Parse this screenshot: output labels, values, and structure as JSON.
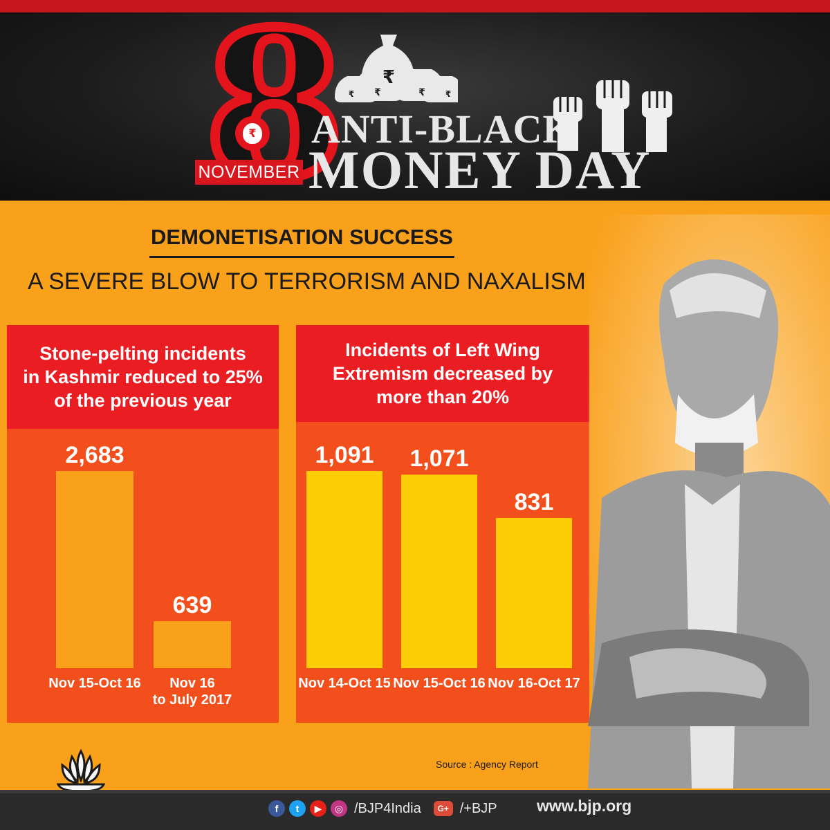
{
  "header": {
    "date_number": "8",
    "month": "NOVEMBER",
    "rupee_symbol": "₹",
    "title_line1": "ANTI-BLACK",
    "title_line2": "MONEY DAY"
  },
  "headline": {
    "line1_prefix": "DEMONETISATION",
    "line1_accent": "SUCCESS",
    "line2": "A SEVERE BLOW TO TERRORISM AND NAXALISM"
  },
  "colors": {
    "background": "#f9a11b",
    "header_red": "#e3141b",
    "panel_bg": "#f24f1c",
    "panel_header": "#ea1e22",
    "bar_left": "#f9a11b",
    "bar_right": "#fdcd06"
  },
  "chart_data": [
    {
      "type": "bar",
      "title": "Stone-pelting incidents\nin Kashmir reduced to 25%\nof the previous year",
      "categories": [
        "Nov 15-Oct 16",
        "Nov 16\nto July 2017"
      ],
      "values": [
        2683,
        639
      ],
      "value_labels": [
        "2,683",
        "639"
      ],
      "ylim": [
        0,
        2683
      ]
    },
    {
      "type": "bar",
      "title": "Incidents of Left Wing\nExtremism decreased by\nmore than 20%",
      "categories": [
        "Nov 14-Oct 15",
        "Nov 15-Oct 16",
        "Nov 16-Oct 17"
      ],
      "values": [
        1091,
        1071,
        831
      ],
      "value_labels": [
        "1,091",
        "1,071",
        "831"
      ],
      "ylim": [
        0,
        1091
      ]
    }
  ],
  "source": "Source : Agency Report",
  "footer": {
    "icons": [
      "facebook-icon",
      "twitter-icon",
      "youtube-icon",
      "instagram-icon"
    ],
    "handle": "/BJP4India",
    "gplus_label": "G+",
    "gplus_handle": "/+BJP",
    "website": "www.bjp.org"
  }
}
